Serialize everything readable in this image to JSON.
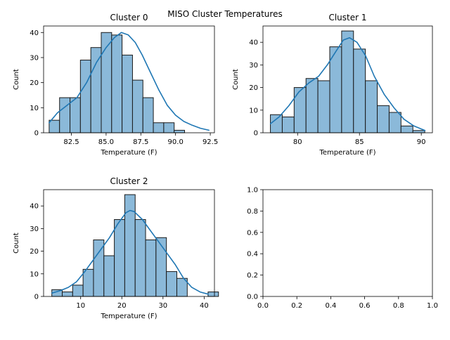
{
  "figure": {
    "suptitle": "MISO Cluster Temperatures"
  },
  "colors": {
    "bar_fill": "#8bb9d9",
    "bar_edge": "#1a1a1a",
    "kde": "#1f77b4",
    "axes": "#000000"
  },
  "chart_data": [
    {
      "type": "bar",
      "title": "Cluster 0",
      "xlabel": "Temperature (F)",
      "ylabel": "Count",
      "bin_start": 80.9,
      "bin_width": 0.75,
      "counts": [
        5,
        14,
        14,
        29,
        34,
        40,
        39,
        31,
        21,
        14,
        4,
        4,
        1
      ],
      "kde_x": [
        80.9,
        81.5,
        82.2,
        82.9,
        83.6,
        84.3,
        85.0,
        85.6,
        86.1,
        86.6,
        87.1,
        87.6,
        88.2,
        88.8,
        89.4,
        90.0,
        90.6,
        91.2,
        91.8,
        92.4
      ],
      "kde_y": [
        4,
        8,
        11,
        14,
        20,
        28,
        34,
        38,
        40,
        39,
        36,
        31,
        24,
        17,
        11,
        7,
        4.5,
        3,
        1.8,
        1
      ],
      "xlim": [
        80.5,
        92.8
      ],
      "ylim": [
        0,
        42.6
      ],
      "xticks": [
        82.5,
        85.0,
        87.5,
        90.0,
        92.5
      ],
      "xtick_labels": [
        "82.5",
        "85.0",
        "87.5",
        "90.0",
        "92.5"
      ],
      "yticks": [
        0,
        10,
        20,
        30,
        40
      ],
      "ytick_labels": [
        "0",
        "10",
        "20",
        "30",
        "40"
      ]
    },
    {
      "type": "bar",
      "title": "Cluster 1",
      "xlabel": "Temperature (F)",
      "ylabel": "Count",
      "bin_start": 77.8,
      "bin_width": 0.96,
      "counts": [
        8,
        7,
        20,
        24,
        23,
        38,
        45,
        37,
        23,
        12,
        9,
        3,
        1
      ],
      "kde_x": [
        77.8,
        78.5,
        79.3,
        80.1,
        80.9,
        81.7,
        82.4,
        83.1,
        83.7,
        84.2,
        84.8,
        85.5,
        86.2,
        87.0,
        87.8,
        88.6,
        89.4,
        90.3
      ],
      "kde_y": [
        4,
        7,
        12,
        18,
        22,
        25,
        30,
        36,
        41,
        42,
        40,
        34,
        25,
        17,
        11,
        6,
        3,
        1
      ],
      "xlim": [
        77.2,
        90.9
      ],
      "ylim": [
        0,
        47.2
      ],
      "xticks": [
        80,
        85,
        90
      ],
      "xtick_labels": [
        "80",
        "85",
        "90"
      ],
      "yticks": [
        0,
        10,
        20,
        30,
        40
      ],
      "ytick_labels": [
        "0",
        "10",
        "20",
        "30",
        "40"
      ]
    },
    {
      "type": "bar",
      "title": "Cluster 2",
      "xlabel": "Temperature (F)",
      "ylabel": "Count",
      "bin_start": 3.0,
      "bin_width": 2.53,
      "counts": [
        3,
        2,
        5,
        12,
        25,
        18,
        34,
        45,
        34,
        25,
        26,
        11,
        8,
        0,
        0,
        2
      ],
      "kde_x": [
        3,
        5,
        7,
        9,
        11,
        13,
        15,
        17,
        19,
        21,
        22,
        23,
        25,
        27,
        29,
        31,
        33,
        35,
        37,
        39,
        41
      ],
      "kde_y": [
        1.5,
        2.5,
        4,
        6.5,
        11,
        16,
        21,
        26,
        32,
        37,
        38,
        37.5,
        34,
        29,
        24,
        19,
        14,
        8,
        4,
        2,
        1
      ],
      "xlim": [
        1.0,
        42.5
      ],
      "ylim": [
        0,
        47.2
      ],
      "xticks": [
        10,
        20,
        30,
        40
      ],
      "xtick_labels": [
        "10",
        "20",
        "30",
        "40"
      ],
      "yticks": [
        0,
        10,
        20,
        30,
        40
      ],
      "ytick_labels": [
        "0",
        "10",
        "20",
        "30",
        "40"
      ]
    },
    {
      "type": "line",
      "title": "",
      "xlabel": "",
      "ylabel": "",
      "empty": true,
      "xlim": [
        0,
        1
      ],
      "ylim": [
        0,
        1
      ],
      "xticks": [
        0,
        0.2,
        0.4,
        0.6,
        0.8,
        1.0
      ],
      "xtick_labels": [
        "0.0",
        "0.2",
        "0.4",
        "0.6",
        "0.8",
        "1.0"
      ],
      "yticks": [
        0,
        0.2,
        0.4,
        0.6,
        0.8,
        1.0
      ],
      "ytick_labels": [
        "0.0",
        "0.2",
        "0.4",
        "0.6",
        "0.8",
        "1.0"
      ]
    }
  ]
}
